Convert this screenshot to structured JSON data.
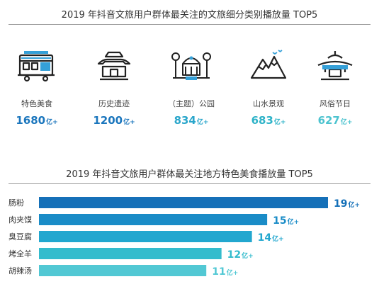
{
  "section1": {
    "title": "2019 年抖音文旅用户群体最关注的文旅细分类别播放量 TOP5",
    "unit": "亿+",
    "items": [
      {
        "label": "特色美食",
        "value": "1680",
        "icon": "train-icon",
        "color": "#1b76bd"
      },
      {
        "label": "历史遗迹",
        "value": "1200",
        "icon": "pavilion-icon",
        "color": "#1b76bd"
      },
      {
        "label": "（主题）公园",
        "value": "834",
        "icon": "park-icon",
        "color": "#2aa6cb"
      },
      {
        "label": "山水景观",
        "value": "683",
        "icon": "mountain-icon",
        "color": "#2eb3c8"
      },
      {
        "label": "风俗节日",
        "value": "627",
        "icon": "temple-icon",
        "color": "#4cc3cf"
      }
    ]
  },
  "chart_data": {
    "type": "bar",
    "orientation": "horizontal",
    "title": "2019 年抖音文旅用户群体最关注地方特色美食播放量 TOP5",
    "unit": "亿+",
    "categories": [
      "肠粉",
      "肉夹馍",
      "臭豆腐",
      "烤全羊",
      "胡辣汤"
    ],
    "values": [
      19,
      15,
      14,
      12,
      11
    ],
    "colors": [
      "#1570b8",
      "#1a8cc7",
      "#22a7cf",
      "#34bccd",
      "#52c8d4"
    ],
    "xlim": [
      0,
      19
    ],
    "grid": false
  }
}
